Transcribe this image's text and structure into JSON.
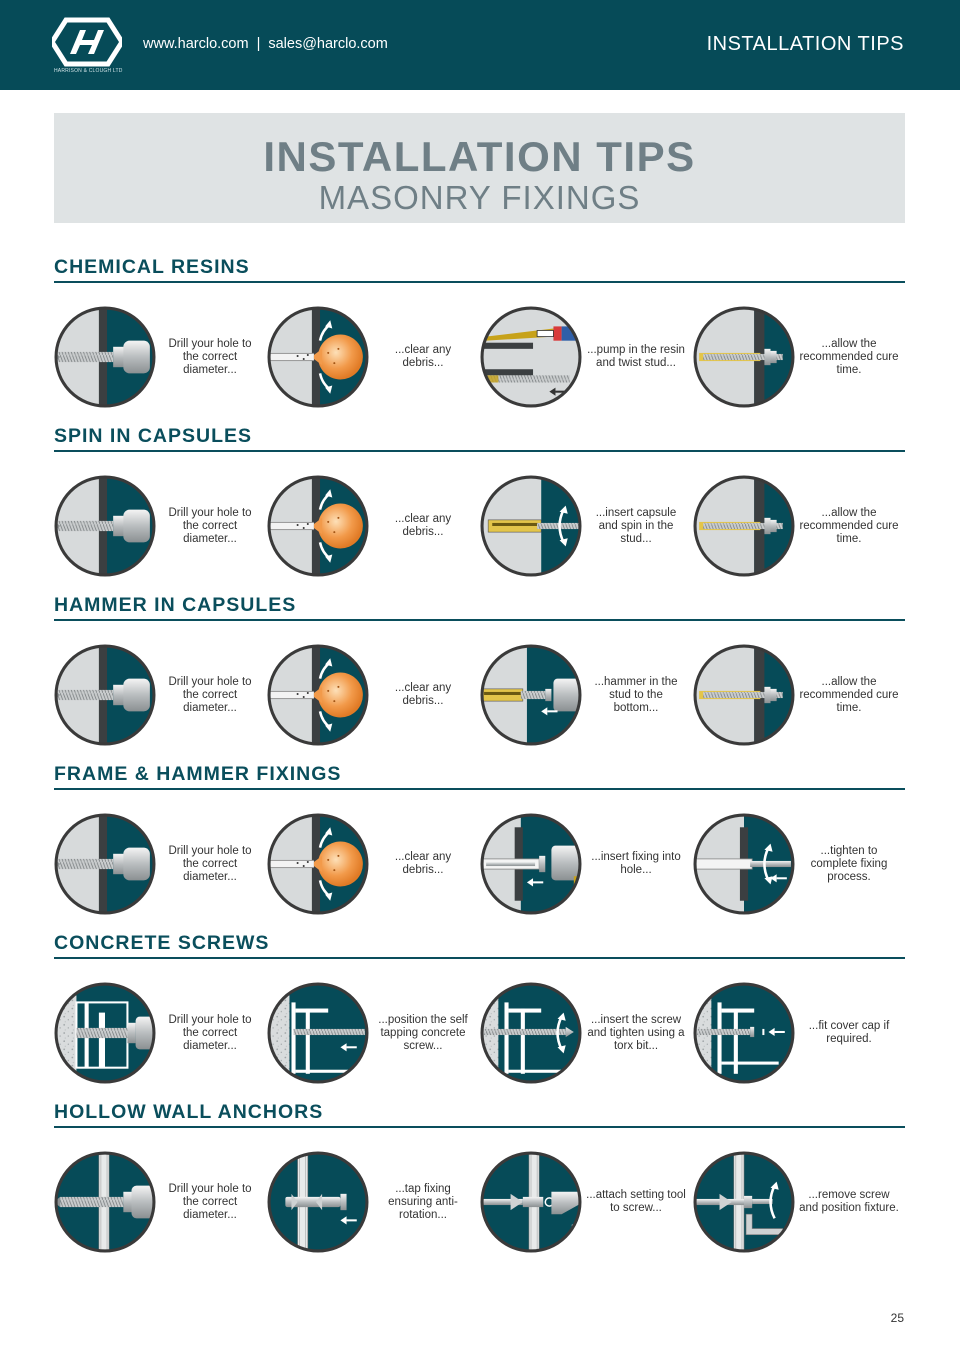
{
  "header": {
    "logo_icon": "harclo-logo-icon",
    "logo_subtext": "HARRISON & CLOUGH LTD",
    "website": "www.harclo.com",
    "separator": "|",
    "email": "sales@harclo.com",
    "title": "INSTALLATION TIPS"
  },
  "hero": {
    "title": "INSTALLATION TIPS",
    "subtitle": "MASONRY FIXINGS"
  },
  "colors": {
    "brand_teal": "#064b58",
    "accent_orange": "#f29a4a",
    "panel_grey": "#dfe3e4"
  },
  "sections": [
    {
      "title": "CHEMICAL RESINS",
      "steps": [
        {
          "icon": "drill-hole-icon",
          "caption": "Drill your hole to the correct diameter..."
        },
        {
          "icon": "clear-debris-icon",
          "caption": "...clear any debris..."
        },
        {
          "icon": "pump-resin-icon",
          "caption": "...pump in the resin and twist stud..."
        },
        {
          "icon": "cure-time-icon",
          "caption": "...allow the recommended cure time."
        }
      ]
    },
    {
      "title": "SPIN IN CAPSULES",
      "steps": [
        {
          "icon": "drill-hole-icon",
          "caption": "Drill your hole to the correct diameter..."
        },
        {
          "icon": "clear-debris-icon",
          "caption": "...clear any debris..."
        },
        {
          "icon": "spin-capsule-icon",
          "caption": "...insert capsule and spin in the stud..."
        },
        {
          "icon": "cure-time-icon",
          "caption": "...allow the recommended cure time."
        }
      ]
    },
    {
      "title": "HAMMER IN CAPSULES",
      "steps": [
        {
          "icon": "drill-hole-icon",
          "caption": "Drill your hole to the correct diameter..."
        },
        {
          "icon": "clear-debris-icon",
          "caption": "...clear any debris..."
        },
        {
          "icon": "hammer-stud-icon",
          "caption": "...hammer in the stud to the bottom..."
        },
        {
          "icon": "cure-time-icon",
          "caption": "...allow the recommended cure time."
        }
      ]
    },
    {
      "title": "FRAME & HAMMER FIXINGS",
      "steps": [
        {
          "icon": "drill-hole-icon",
          "caption": "Drill your hole to the correct diameter..."
        },
        {
          "icon": "clear-debris-icon",
          "caption": "...clear any debris..."
        },
        {
          "icon": "insert-fixing-icon",
          "caption": "...insert fixing into hole..."
        },
        {
          "icon": "tighten-fixing-icon",
          "caption": "...tighten to complete fixing process."
        }
      ]
    },
    {
      "title": "CONCRETE SCREWS",
      "steps": [
        {
          "icon": "drill-frame-icon",
          "caption": "Drill your hole to the correct diameter..."
        },
        {
          "icon": "position-screw-icon",
          "caption": "...position the self tapping concrete screw..."
        },
        {
          "icon": "torx-tighten-icon",
          "caption": "...insert the screw and tighten using a torx bit..."
        },
        {
          "icon": "cover-cap-icon",
          "caption": "...fit cover cap if required."
        }
      ]
    },
    {
      "title": "HOLLOW WALL ANCHORS",
      "steps": [
        {
          "icon": "drill-wall-icon",
          "caption": "Drill your hole to the correct diameter..."
        },
        {
          "icon": "tap-anchor-icon",
          "caption": "...tap fixing ensuring anti-rotation..."
        },
        {
          "icon": "setting-tool-icon",
          "caption": "...attach setting tool to screw..."
        },
        {
          "icon": "remove-screw-icon",
          "caption": "...remove screw and position fixture."
        }
      ]
    }
  ],
  "page_number": "25"
}
